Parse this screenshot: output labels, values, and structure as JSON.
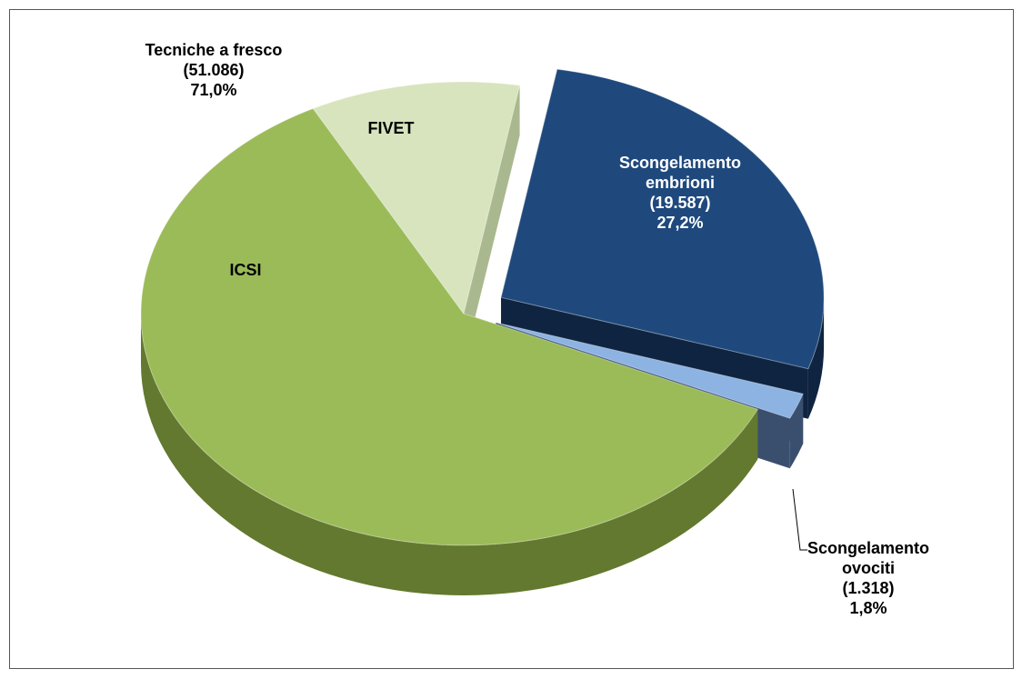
{
  "chart_data": {
    "type": "pie3d",
    "categories": [
      "Scongelamento embrioni",
      "Scongelamento ovociti",
      "ICSI",
      "FIVET"
    ],
    "values": [
      27.2,
      1.8,
      60.5,
      10.5
    ],
    "value_labels": [
      "27,2%",
      "1,8%",
      null,
      null
    ],
    "counts": [
      19587,
      1318,
      null,
      null
    ],
    "count_labels": [
      "(19.587)",
      "(1.318)",
      null,
      null
    ],
    "colors": [
      "#1f497d",
      "#8db3e2",
      "#9bbb59",
      "#d7e4bd"
    ],
    "side_colors": [
      "#0f2440",
      "#3a4f6e",
      "#62792f",
      "#aab88f"
    ],
    "group": {
      "name": "Tecniche a fresco",
      "count": 51086,
      "count_label": "(51.086)",
      "value": 71.0,
      "value_label": "71,0%"
    }
  }
}
